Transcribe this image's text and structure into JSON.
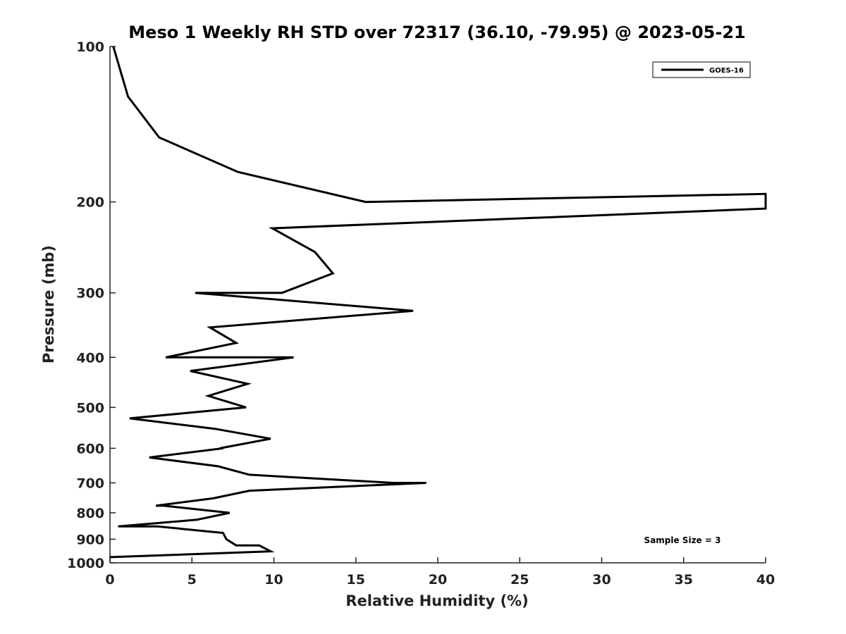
{
  "chart_data": {
    "type": "line",
    "title": "Meso 1 Weekly RH STD over 72317 (36.10, -79.95) @ 2023-05-21",
    "xlabel": "Relative Humidity (%)",
    "ylabel": "Pressure (mb)",
    "xlim": [
      0,
      40
    ],
    "ylim": [
      100,
      1000
    ],
    "y_scale": "log",
    "y_reversed": true,
    "x_ticks": [
      0,
      5,
      10,
      15,
      20,
      25,
      30,
      35,
      40
    ],
    "y_ticks": [
      100,
      200,
      300,
      400,
      500,
      600,
      700,
      800,
      900,
      1000
    ],
    "grid": false,
    "legend_position": "top-right",
    "annotation": "Sample Size = 3",
    "series": [
      {
        "name": "GOES-16",
        "color": "#000000",
        "points": [
          [
            0.2,
            100
          ],
          [
            1.1,
            125
          ],
          [
            3.0,
            150
          ],
          [
            7.8,
            175
          ],
          [
            15.6,
            200
          ],
          [
            40.0,
            193
          ],
          [
            40.0,
            206
          ],
          [
            9.9,
            225
          ],
          [
            12.5,
            250
          ],
          [
            13.6,
            275
          ],
          [
            10.5,
            300
          ],
          [
            5.2,
            300
          ],
          [
            18.5,
            325
          ],
          [
            6.1,
            350
          ],
          [
            7.7,
            375
          ],
          [
            3.4,
            400
          ],
          [
            11.2,
            400
          ],
          [
            4.9,
            425
          ],
          [
            8.4,
            450
          ],
          [
            6.0,
            475
          ],
          [
            8.3,
            500
          ],
          [
            1.2,
            525
          ],
          [
            6.4,
            550
          ],
          [
            9.8,
            575
          ],
          [
            6.7,
            600
          ],
          [
            6.9,
            600
          ],
          [
            2.4,
            625
          ],
          [
            6.6,
            650
          ],
          [
            8.5,
            675
          ],
          [
            17.3,
            700
          ],
          [
            19.3,
            700
          ],
          [
            8.5,
            725
          ],
          [
            6.3,
            750
          ],
          [
            2.8,
            775
          ],
          [
            3.3,
            775
          ],
          [
            7.3,
            800
          ],
          [
            5.3,
            825
          ],
          [
            0.5,
            850
          ],
          [
            2.9,
            850
          ],
          [
            6.9,
            875
          ],
          [
            7.1,
            900
          ],
          [
            7.7,
            925
          ],
          [
            9.1,
            925
          ],
          [
            9.8,
            950
          ],
          [
            0.0,
            975
          ]
        ]
      }
    ]
  }
}
